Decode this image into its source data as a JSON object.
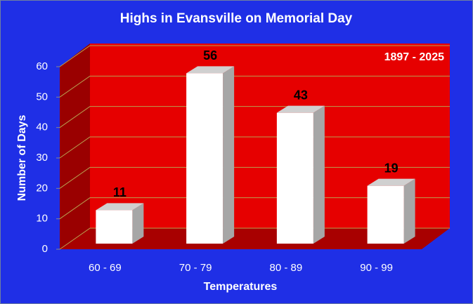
{
  "chart_data": {
    "type": "bar",
    "title": "Highs in Evansville on Memorial Day",
    "annotation": "1897 - 2025",
    "x_label": "Temperatures",
    "y_label": "Number of Days",
    "categories": [
      "60 - 69",
      "70 - 79",
      "80 - 89",
      "90 - 99"
    ],
    "values": [
      11,
      56,
      43,
      19
    ],
    "color": "#ffffff",
    "ylim": [
      0,
      60
    ],
    "yticks": [
      0,
      10,
      20,
      30,
      40,
      50,
      60
    ],
    "grid": true
  }
}
